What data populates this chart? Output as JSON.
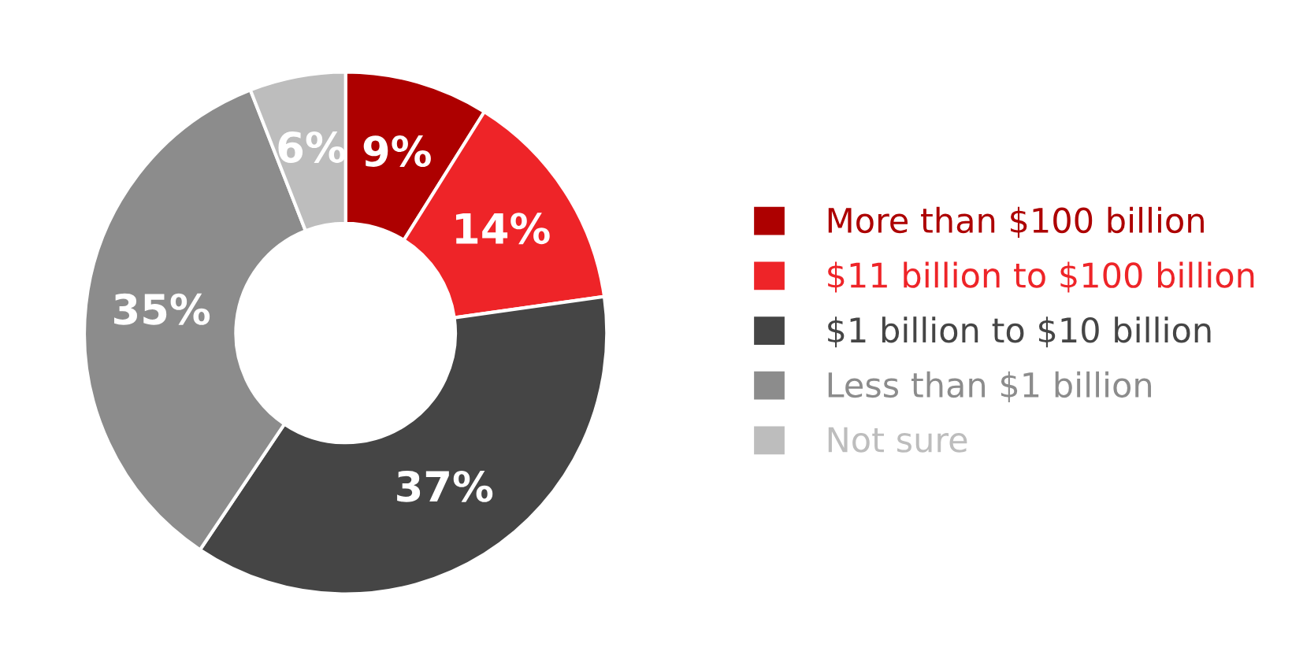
{
  "chart_data": {
    "type": "donut",
    "categories": [
      "More than $100 billion",
      "$11 billion to $100 billion",
      "$1 billion to $10 billion",
      "Less than $1 billion",
      "Not sure"
    ],
    "values": [
      9,
      14,
      37,
      35,
      6
    ],
    "colors": [
      "#ad0000",
      "#ee2428",
      "#454545",
      "#8c8c8c",
      "#bdbdbd"
    ],
    "value_labels": [
      "9%",
      "14%",
      "37%",
      "35%",
      "6%"
    ],
    "legend": "right"
  }
}
